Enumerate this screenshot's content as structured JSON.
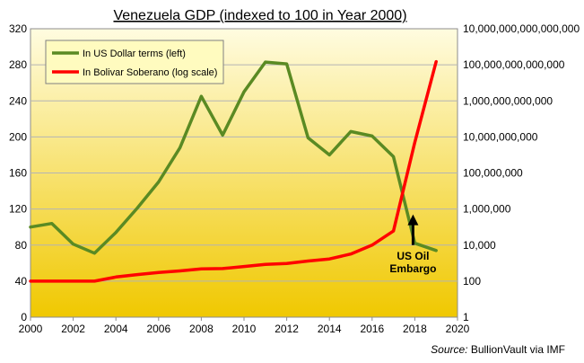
{
  "chart_data": {
    "type": "line",
    "title": "Venezuela  GDP (indexed to 100 in Year 2000)",
    "source_prefix": "Source:",
    "source_name": " BullionVault via IMF",
    "x_ticks": [
      "2000",
      "2002",
      "2004",
      "2006",
      "2008",
      "2010",
      "2012",
      "2014",
      "2016",
      "2018",
      "2020"
    ],
    "x_range": [
      2000,
      2020
    ],
    "left_axis": {
      "ylim": [
        0,
        320
      ],
      "ticks": [
        "0",
        "40",
        "80",
        "120",
        "160",
        "200",
        "240",
        "280",
        "320"
      ]
    },
    "right_axis": {
      "scale": "log",
      "ylim": [
        1,
        10000000000000000
      ],
      "ticks": [
        "1",
        "100",
        "10,000",
        "1,000,000",
        "100,000,000",
        "10,000,000,000",
        "1,000,000,000,000",
        "100,000,000,000,000",
        "10,000,000,000,000,000"
      ]
    },
    "legend_position": "top-left",
    "series": [
      {
        "name": "In US Dollar terms (left)",
        "axis": "left",
        "color": "#5a8a23",
        "x": [
          2000,
          2001,
          2002,
          2003,
          2004,
          2005,
          2006,
          2007,
          2008,
          2009,
          2010,
          2011,
          2012,
          2013,
          2014,
          2015,
          2016,
          2017,
          2018,
          2019
        ],
        "values": [
          100,
          104,
          81,
          71,
          94,
          121,
          150,
          188,
          245,
          202,
          250,
          283,
          281,
          199,
          180,
          206,
          201,
          178,
          82,
          74
        ]
      },
      {
        "name": "In Bolivar Soberano (log scale)",
        "axis": "right",
        "color": "#ff0000",
        "x": [
          2000,
          2001,
          2002,
          2003,
          2004,
          2005,
          2006,
          2007,
          2008,
          2009,
          2010,
          2011,
          2012,
          2013,
          2014,
          2015,
          2016,
          2017,
          2018,
          2019
        ],
        "values": [
          100,
          100,
          100,
          100,
          170,
          230,
          300,
          370,
          480,
          500,
          650,
          850,
          950,
          1300,
          1700,
          3200,
          10000,
          60000,
          5000000000,
          150000000000000
        ]
      }
    ],
    "annotations": [
      {
        "text_line1": "US Oil",
        "text_line2": "Embargo",
        "x": 2018,
        "arrow_from": 80,
        "arrow_to": 112
      }
    ]
  },
  "colors": {
    "plot_bg_top": "#fffce0",
    "plot_bg_bottom": "#f0c800",
    "legend_bg": "#fffbbf",
    "grid": "#b4b4b4"
  }
}
